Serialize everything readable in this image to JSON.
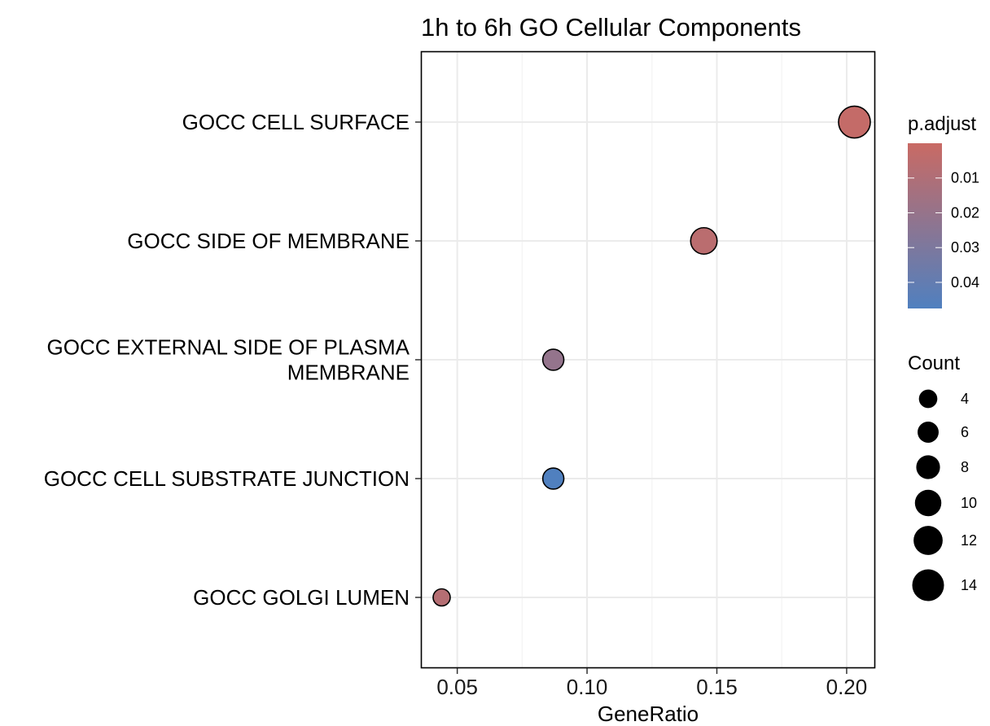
{
  "chart_data": {
    "type": "scatter",
    "title": "1h to 6h GO Cellular Components",
    "xlabel": "GeneRatio",
    "ylabel": "",
    "xlim": [
      0.036,
      0.211
    ],
    "x_ticks": [
      0.05,
      0.1,
      0.15,
      0.2
    ],
    "x_tick_labels": [
      "0.05",
      "0.10",
      "0.15",
      "0.20"
    ],
    "grid": true,
    "categories": [
      "GOCC CELL SURFACE",
      "GOCC SIDE OF MEMBRANE",
      "GOCC EXTERNAL SIDE OF PLASMA MEMBRANE",
      "GOCC CELL SUBSTRATE JUNCTION",
      "GOCC GOLGI LUMEN"
    ],
    "category_label_lines": [
      [
        "GOCC CELL SURFACE"
      ],
      [
        "GOCC SIDE OF MEMBRANE"
      ],
      [
        "GOCC EXTERNAL SIDE OF PLASMA",
        "MEMBRANE"
      ],
      [
        "GOCC CELL SUBSTRATE JUNCTION"
      ],
      [
        "GOCC GOLGI LUMEN"
      ]
    ],
    "points": [
      {
        "term": "GOCC CELL SURFACE",
        "gene_ratio": 0.203,
        "count": 14,
        "p_adjust": 0.002
      },
      {
        "term": "GOCC SIDE OF MEMBRANE",
        "gene_ratio": 0.145,
        "count": 10,
        "p_adjust": 0.006
      },
      {
        "term": "GOCC EXTERNAL SIDE OF PLASMA MEMBRANE",
        "gene_ratio": 0.087,
        "count": 6,
        "p_adjust": 0.021
      },
      {
        "term": "GOCC CELL SUBSTRATE JUNCTION",
        "gene_ratio": 0.087,
        "count": 6,
        "p_adjust": 0.048
      },
      {
        "term": "GOCC GOLGI LUMEN",
        "gene_ratio": 0.044,
        "count": 3,
        "p_adjust": 0.008
      }
    ],
    "color_legend": {
      "title": "p.adjust",
      "ticks": [
        0.01,
        0.02,
        0.03,
        0.04
      ],
      "tick_labels": [
        "0.01",
        "0.02",
        "0.03",
        "0.04"
      ],
      "range": [
        0.0,
        0.0475
      ],
      "low_color": "#c96a64",
      "high_color": "#5080bf"
    },
    "size_legend": {
      "title": "Count",
      "values": [
        4,
        6,
        8,
        10,
        12,
        14
      ],
      "labels": [
        "4",
        "6",
        "8",
        "10",
        "12",
        "14"
      ]
    },
    "legend_position": "right"
  }
}
